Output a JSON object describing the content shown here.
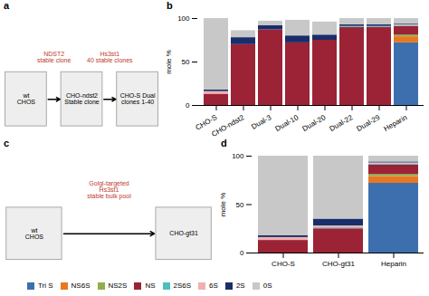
{
  "chart_data": [
    {
      "type": "diagram",
      "title": "a",
      "annotations": [
        {
          "text": "wt\nCHOS"
        },
        {
          "text": "NDST2\nstable clone",
          "color": "#c0392b"
        },
        {
          "text": "CHO-ndst2\nStable clone"
        },
        {
          "text": "Hs3st1\n40 stable clones",
          "color": "#c0392b"
        },
        {
          "text": "CHO-S Dual\nclones 1-40"
        }
      ]
    },
    {
      "type": "bar",
      "title": "b",
      "stacked": true,
      "categories": [
        "CHO-S",
        "CHO-ndst2",
        "Dual-3",
        "Dual-10",
        "Dual-20",
        "Dual-22",
        "Dual-29",
        "Heparin"
      ],
      "series": [
        {
          "name": "Tri S",
          "color": "#3d6faf",
          "values": [
            0,
            0,
            0,
            0,
            0,
            0,
            0,
            72
          ]
        },
        {
          "name": "NS6S",
          "color": "#e87722",
          "values": [
            0,
            0,
            0,
            0,
            0,
            0,
            0,
            7
          ]
        },
        {
          "name": "NS2S",
          "color": "#8db04b",
          "values": [
            0,
            0,
            0,
            0,
            0,
            0,
            0,
            2
          ]
        },
        {
          "name": "NS",
          "color": "#9b2335",
          "values": [
            13,
            70,
            87,
            72,
            75,
            90,
            90,
            10
          ]
        },
        {
          "name": "2S6S",
          "color": "#4ebfbf",
          "values": [
            0,
            0,
            0,
            0,
            0,
            1,
            1,
            1
          ]
        },
        {
          "name": "6S",
          "color": "#f0b0b0",
          "values": [
            3,
            0,
            0,
            0,
            0,
            0,
            0,
            1
          ]
        },
        {
          "name": "2S",
          "color": "#1a2d6b",
          "values": [
            2,
            8,
            5,
            8,
            6,
            2,
            2,
            1
          ]
        },
        {
          "name": "0S",
          "color": "#c8c8c8",
          "values": [
            82,
            8,
            5,
            18,
            15,
            7,
            7,
            6
          ]
        }
      ],
      "ylabel": "mole %",
      "ylim": [
        0,
        100
      ],
      "yticks": [
        0,
        50,
        100
      ]
    },
    {
      "type": "diagram",
      "title": "c",
      "annotations": [
        {
          "text": "wt\nCHOS"
        },
        {
          "text": "Golgi-targeted\nHs3st1\nstable bulk pool",
          "color": "#c0392b"
        },
        {
          "text": "CHO-gt31"
        }
      ]
    },
    {
      "type": "bar",
      "title": "d",
      "stacked": true,
      "legend": "bottom",
      "categories": [
        "CHO-S",
        "CHO-gt31",
        "Heparin"
      ],
      "series": [
        {
          "name": "Tri S",
          "color": "#3d6faf",
          "values": [
            0,
            0,
            72
          ]
        },
        {
          "name": "NS6S",
          "color": "#e87722",
          "values": [
            0,
            0,
            7
          ]
        },
        {
          "name": "NS2S",
          "color": "#8db04b",
          "values": [
            0,
            0,
            2
          ]
        },
        {
          "name": "NS",
          "color": "#9b2335",
          "values": [
            13,
            25,
            10
          ]
        },
        {
          "name": "2S6S",
          "color": "#4ebfbf",
          "values": [
            0,
            1,
            1
          ]
        },
        {
          "name": "6S",
          "color": "#f0b0b0",
          "values": [
            3,
            2,
            1
          ]
        },
        {
          "name": "2S",
          "color": "#1a2d6b",
          "values": [
            2,
            7,
            1
          ]
        },
        {
          "name": "0S",
          "color": "#c8c8c8",
          "values": [
            82,
            65,
            6
          ]
        }
      ],
      "ylabel": "mole %",
      "ylim": [
        0,
        100
      ],
      "yticks": [
        0,
        50,
        100
      ]
    }
  ]
}
